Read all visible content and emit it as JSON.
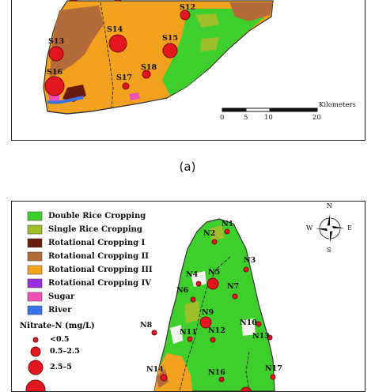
{
  "panel_a": {
    "sites": [
      {
        "id": "S12",
        "label": "S12"
      },
      {
        "id": "S13",
        "label": "S13"
      },
      {
        "id": "S14",
        "label": "S14"
      },
      {
        "id": "S15",
        "label": "S15"
      },
      {
        "id": "S16",
        "label": "S16"
      },
      {
        "id": "S17",
        "label": "S17"
      },
      {
        "id": "S18",
        "label": "S18"
      }
    ],
    "scale_bar": {
      "unit": "Kilometers",
      "ticks": [
        "0",
        "5",
        "10",
        "20"
      ],
      "values_km": [
        0,
        5,
        10,
        20
      ]
    },
    "caption": "(a)"
  },
  "panel_b": {
    "legend": [
      {
        "label": "Double Rice Cropping",
        "color": "#3fcf2c"
      },
      {
        "label": "Single Rice Cropping",
        "color": "#9cbf2a"
      },
      {
        "label": "Rotational Cropping I",
        "color": "#6b1a0e"
      },
      {
        "label": "Rotational Cropping II",
        "color": "#b56a3a"
      },
      {
        "label": "Rotational Cropping III",
        "color": "#f2a21f"
      },
      {
        "label": "Rotational Cropping IV",
        "color": "#9b2fe0"
      },
      {
        "label": "Sugar",
        "color": "#f04fb4"
      },
      {
        "label": "River",
        "color": "#3a73e6"
      }
    ],
    "concentration_title": "Nitrate-N (mg/L)",
    "concentration_classes": [
      {
        "label": "<0.5"
      },
      {
        "label": "0.5–2.5"
      },
      {
        "label": "2.5–5"
      }
    ],
    "compass": {
      "n": "N",
      "s": "S",
      "e": "E",
      "w": "W"
    },
    "sites": [
      {
        "id": "N1",
        "label": "N1"
      },
      {
        "id": "N2",
        "label": "N2"
      },
      {
        "id": "N3",
        "label": "N3"
      },
      {
        "id": "N4",
        "label": "N4"
      },
      {
        "id": "N5",
        "label": "N5"
      },
      {
        "id": "N6",
        "label": "N6"
      },
      {
        "id": "N7",
        "label": "N7"
      },
      {
        "id": "N8",
        "label": "N8"
      },
      {
        "id": "N9",
        "label": "N9"
      },
      {
        "id": "N10",
        "label": "N10"
      },
      {
        "id": "N11",
        "label": "N11"
      },
      {
        "id": "N12",
        "label": "N12"
      },
      {
        "id": "N13",
        "label": "N13"
      },
      {
        "id": "N14",
        "label": "N14"
      },
      {
        "id": "N16",
        "label": "N16"
      },
      {
        "id": "N17",
        "label": "N17"
      }
    ]
  },
  "colors": {
    "site_marker": "#e2161f",
    "background": "#ffffff"
  }
}
